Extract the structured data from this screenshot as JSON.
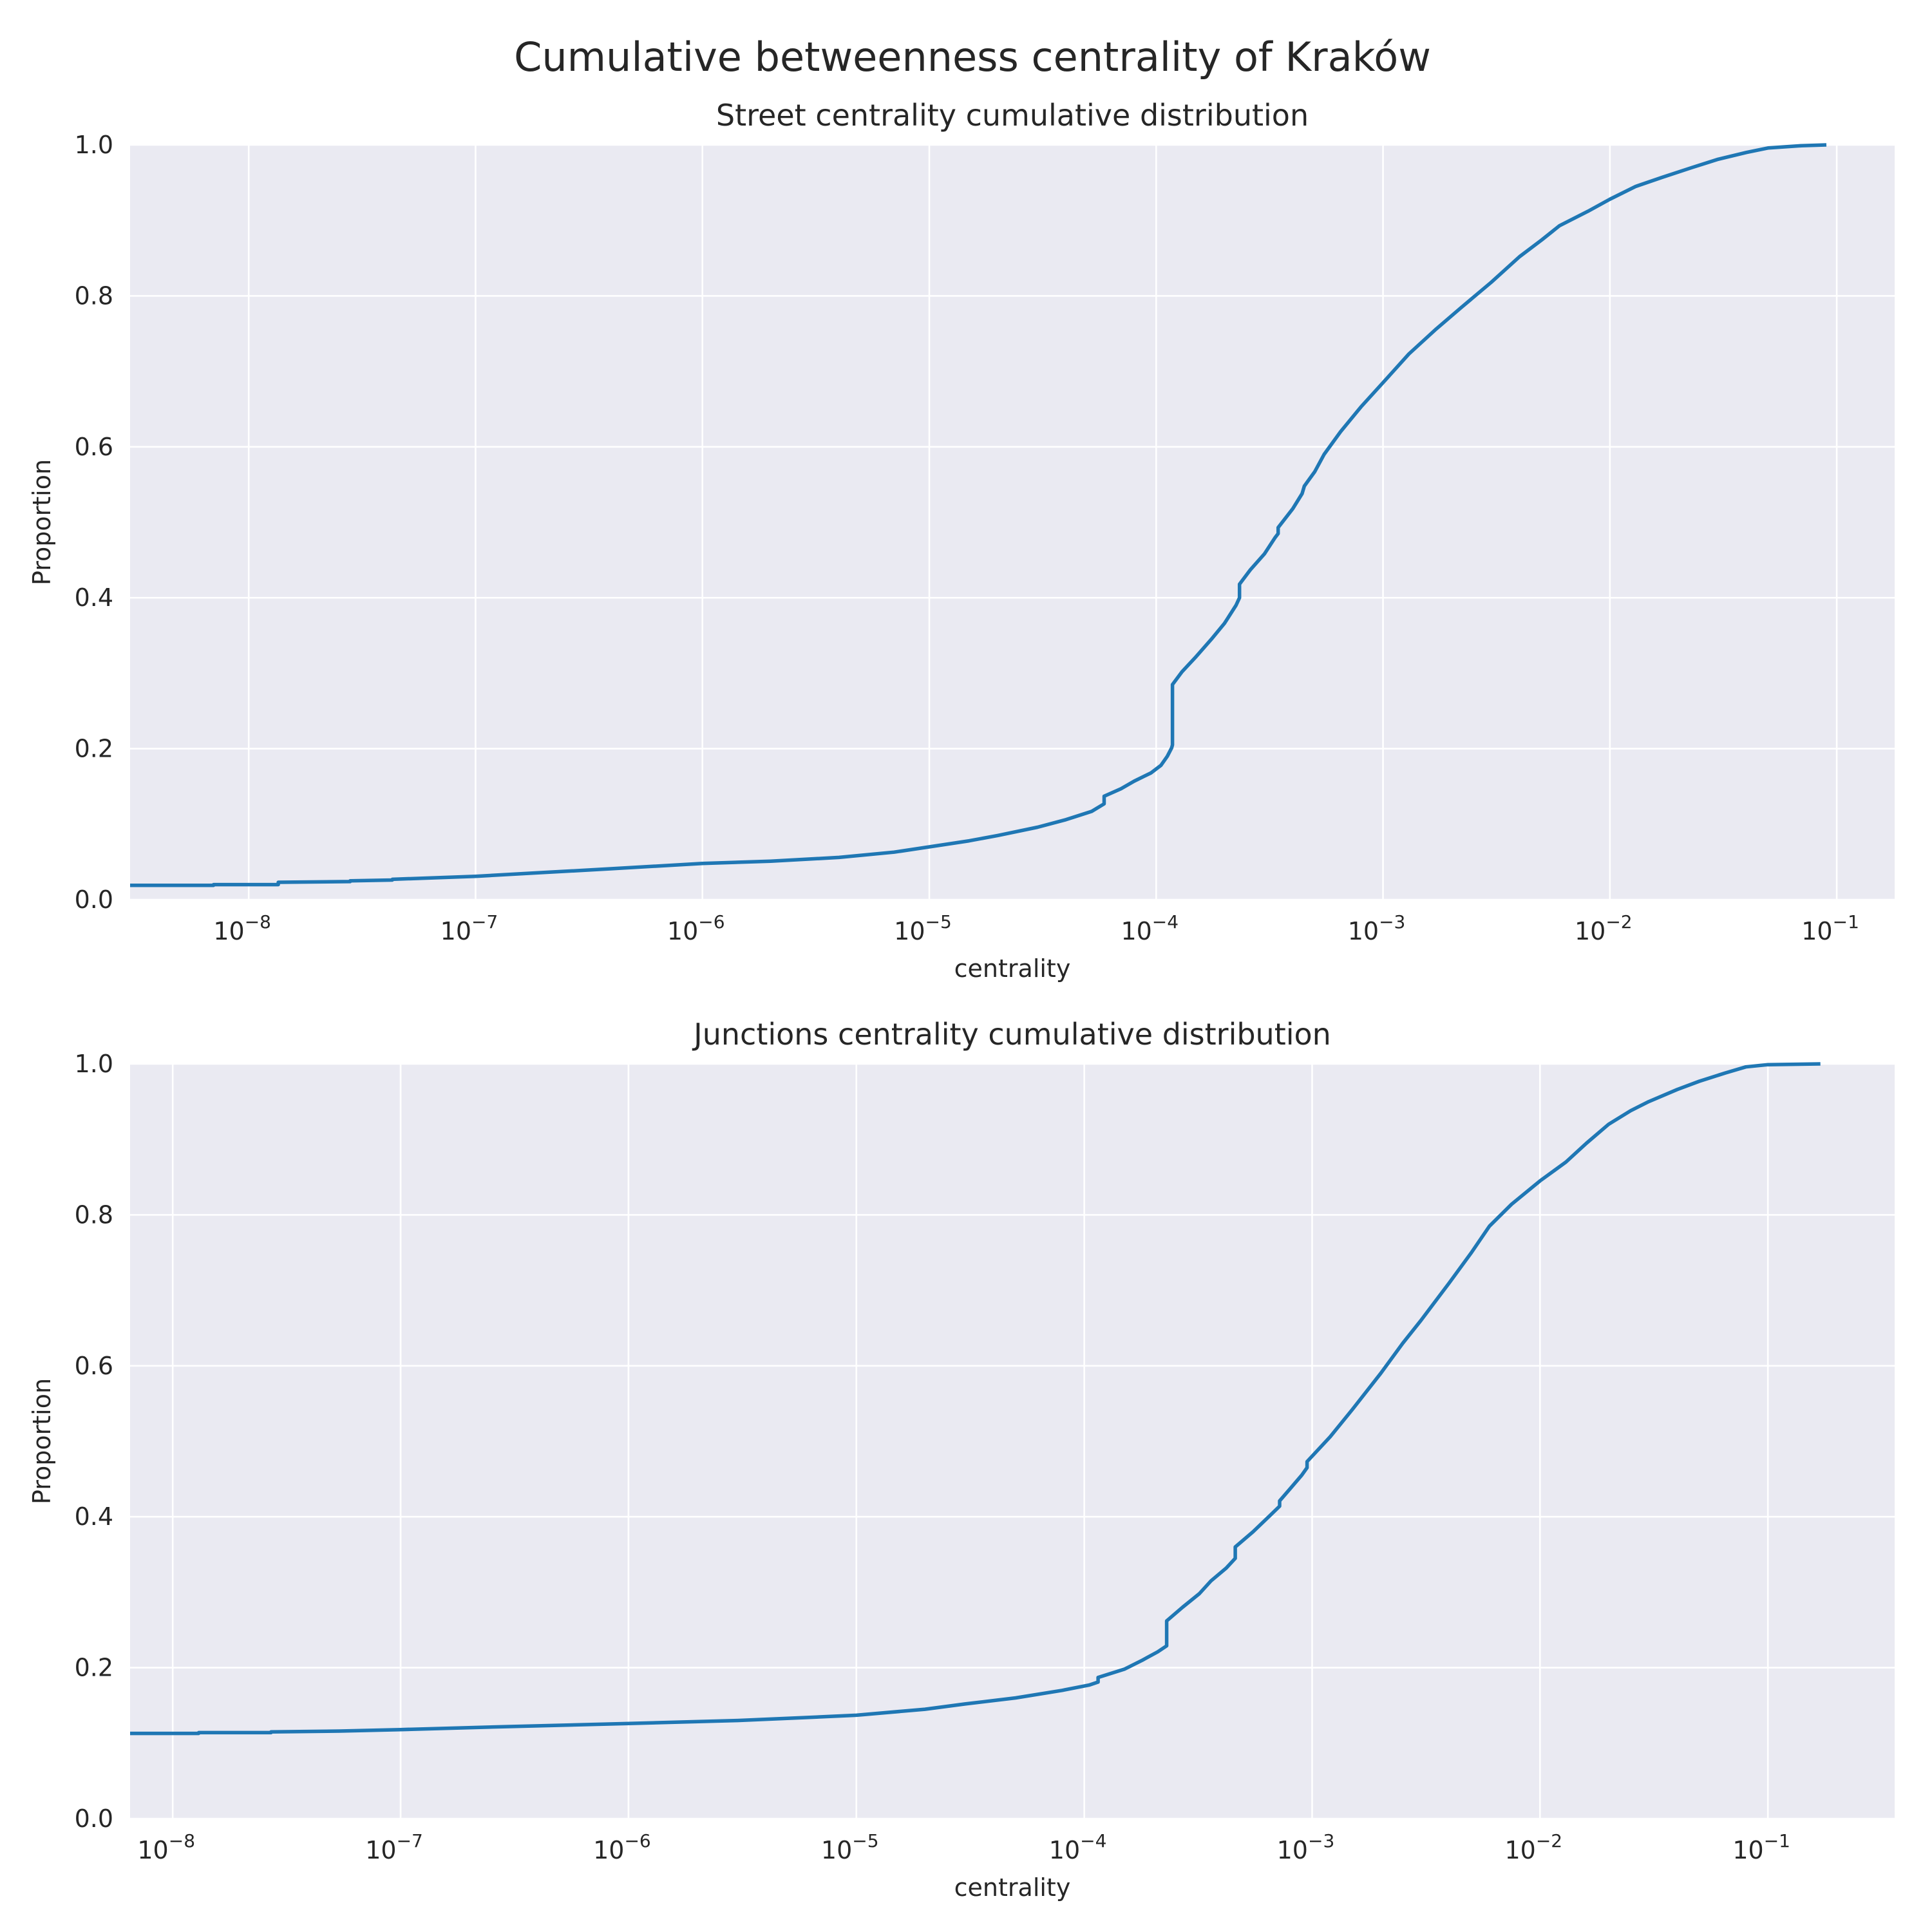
{
  "figure_title": "Cumulative betweenness centrality of Kraków",
  "chart_data": [
    {
      "type": "line",
      "title": "Street centrality cumulative distribution",
      "xlabel": "centrality",
      "ylabel": "Proportion",
      "xscale": "log",
      "xlim": [
        3e-09,
        0.18
      ],
      "ylim": [
        0.0,
        1.0
      ],
      "grid": true,
      "x_ticks": [
        {
          "exp": -8,
          "base": "10",
          "sup": "−8"
        },
        {
          "exp": -7,
          "base": "10",
          "sup": "−7"
        },
        {
          "exp": -6,
          "base": "10",
          "sup": "−6"
        },
        {
          "exp": -5,
          "base": "10",
          "sup": "−5"
        },
        {
          "exp": -4,
          "base": "10",
          "sup": "−4"
        },
        {
          "exp": -3,
          "base": "10",
          "sup": "−3"
        },
        {
          "exp": -2,
          "base": "10",
          "sup": "−2"
        },
        {
          "exp": -1,
          "base": "10",
          "sup": "−1"
        }
      ],
      "y_ticks": [
        "0.0",
        "0.2",
        "0.4",
        "0.6",
        "0.8",
        "1.0"
      ],
      "series": [
        {
          "name": "street",
          "points": [
            [
              3e-09,
              0.019
            ],
            [
              7e-09,
              0.019
            ],
            [
              7e-09,
              0.02
            ],
            [
              1.35e-08,
              0.02
            ],
            [
              1.35e-08,
              0.023
            ],
            [
              2.8e-08,
              0.024
            ],
            [
              2.8e-08,
              0.025
            ],
            [
              4.3e-08,
              0.026
            ],
            [
              4.3e-08,
              0.027
            ],
            [
              1e-07,
              0.031
            ],
            [
              2e-07,
              0.036
            ],
            [
              4e-07,
              0.041
            ],
            [
              1e-06,
              0.048
            ],
            [
              2e-06,
              0.051
            ],
            [
              4e-06,
              0.056
            ],
            [
              7e-06,
              0.063
            ],
            [
              1e-05,
              0.07
            ],
            [
              1.5e-05,
              0.078
            ],
            [
              2e-05,
              0.085
            ],
            [
              3e-05,
              0.096
            ],
            [
              4e-05,
              0.106
            ],
            [
              5.2e-05,
              0.117
            ],
            [
              5.9e-05,
              0.127
            ],
            [
              5.9e-05,
              0.137
            ],
            [
              7e-05,
              0.147
            ],
            [
              8e-05,
              0.157
            ],
            [
              9.5e-05,
              0.168
            ],
            [
              0.000105,
              0.178
            ],
            [
              0.000112,
              0.19
            ],
            [
              0.000117,
              0.201
            ],
            [
              0.000118,
              0.205
            ],
            [
              0.000118,
              0.285
            ],
            [
              0.00013,
              0.302
            ],
            [
              0.00015,
              0.322
            ],
            [
              0.000175,
              0.345
            ],
            [
              0.0002,
              0.366
            ],
            [
              0.000225,
              0.39
            ],
            [
              0.000233,
              0.4
            ],
            [
              0.000233,
              0.418
            ],
            [
              0.00026,
              0.437
            ],
            [
              0.0003,
              0.458
            ],
            [
              0.000335,
              0.48
            ],
            [
              0.000345,
              0.485
            ],
            [
              0.000345,
              0.493
            ],
            [
              0.0004,
              0.518
            ],
            [
              0.00044,
              0.538
            ],
            [
              0.00045,
              0.548
            ],
            [
              0.0005,
              0.567
            ],
            [
              0.00055,
              0.59
            ],
            [
              0.00065,
              0.62
            ],
            [
              0.0008,
              0.653
            ],
            [
              0.001,
              0.685
            ],
            [
              0.0013,
              0.723
            ],
            [
              0.0017,
              0.755
            ],
            [
              0.0022,
              0.784
            ],
            [
              0.003,
              0.818
            ],
            [
              0.004,
              0.852
            ],
            [
              0.005,
              0.874
            ],
            [
              0.006,
              0.893
            ],
            [
              0.008,
              0.912
            ],
            [
              0.01,
              0.928
            ],
            [
              0.013,
              0.945
            ],
            [
              0.017,
              0.957
            ],
            [
              0.023,
              0.97
            ],
            [
              0.03,
              0.981
            ],
            [
              0.04,
              0.99
            ],
            [
              0.05,
              0.996
            ],
            [
              0.07,
              0.999
            ],
            [
              0.09,
              1.0
            ]
          ]
        }
      ]
    },
    {
      "type": "line",
      "title": "Junctions centrality cumulative distribution",
      "xlabel": "centrality",
      "ylabel": "Proportion",
      "xscale": "log",
      "xlim": [
        6.5e-09,
        0.36
      ],
      "ylim": [
        0.0,
        1.0
      ],
      "grid": true,
      "x_ticks": [
        {
          "exp": -8,
          "base": "10",
          "sup": "−8"
        },
        {
          "exp": -7,
          "base": "10",
          "sup": "−7"
        },
        {
          "exp": -6,
          "base": "10",
          "sup": "−6"
        },
        {
          "exp": -5,
          "base": "10",
          "sup": "−5"
        },
        {
          "exp": -4,
          "base": "10",
          "sup": "−4"
        },
        {
          "exp": -3,
          "base": "10",
          "sup": "−3"
        },
        {
          "exp": -2,
          "base": "10",
          "sup": "−2"
        },
        {
          "exp": -1,
          "base": "10",
          "sup": "−1"
        }
      ],
      "y_ticks": [
        "0.0",
        "0.2",
        "0.4",
        "0.6",
        "0.8",
        "1.0"
      ],
      "series": [
        {
          "name": "junctions",
          "points": [
            [
              6.5e-09,
              0.113
            ],
            [
              1.3e-08,
              0.113
            ],
            [
              1.3e-08,
              0.114
            ],
            [
              2.7e-08,
              0.114
            ],
            [
              2.7e-08,
              0.115
            ],
            [
              5.4e-08,
              0.116
            ],
            [
              1e-07,
              0.118
            ],
            [
              3e-07,
              0.122
            ],
            [
              1e-06,
              0.126
            ],
            [
              3e-06,
              0.13
            ],
            [
              6e-06,
              0.134
            ],
            [
              1e-05,
              0.137
            ],
            [
              2e-05,
              0.145
            ],
            [
              3e-05,
              0.152
            ],
            [
              5e-05,
              0.16
            ],
            [
              8e-05,
              0.17
            ],
            [
              0.000105,
              0.177
            ],
            [
              0.000115,
              0.181
            ],
            [
              0.000115,
              0.187
            ],
            [
              0.00015,
              0.198
            ],
            [
              0.00018,
              0.21
            ],
            [
              0.00021,
              0.221
            ],
            [
              0.00023,
              0.229
            ],
            [
              0.00023,
              0.262
            ],
            [
              0.00027,
              0.28
            ],
            [
              0.00032,
              0.298
            ],
            [
              0.00036,
              0.315
            ],
            [
              0.00042,
              0.332
            ],
            [
              0.00046,
              0.345
            ],
            [
              0.00046,
              0.36
            ],
            [
              0.00055,
              0.38
            ],
            [
              0.00065,
              0.401
            ],
            [
              0.00072,
              0.414
            ],
            [
              0.00072,
              0.421
            ],
            [
              0.0008,
              0.437
            ],
            [
              0.0009,
              0.455
            ],
            [
              0.00095,
              0.465
            ],
            [
              0.00095,
              0.473
            ],
            [
              0.0012,
              0.506
            ],
            [
              0.0015,
              0.542
            ],
            [
              0.002,
              0.59
            ],
            [
              0.0025,
              0.63
            ],
            [
              0.003,
              0.66
            ],
            [
              0.004,
              0.71
            ],
            [
              0.005,
              0.75
            ],
            [
              0.006,
              0.785
            ],
            [
              0.0075,
              0.814
            ],
            [
              0.01,
              0.845
            ],
            [
              0.013,
              0.87
            ],
            [
              0.016,
              0.895
            ],
            [
              0.02,
              0.92
            ],
            [
              0.025,
              0.938
            ],
            [
              0.03,
              0.95
            ],
            [
              0.04,
              0.966
            ],
            [
              0.05,
              0.977
            ],
            [
              0.065,
              0.988
            ],
            [
              0.08,
              0.996
            ],
            [
              0.1,
              0.999
            ],
            [
              0.17,
              1.0
            ]
          ]
        }
      ]
    }
  ]
}
